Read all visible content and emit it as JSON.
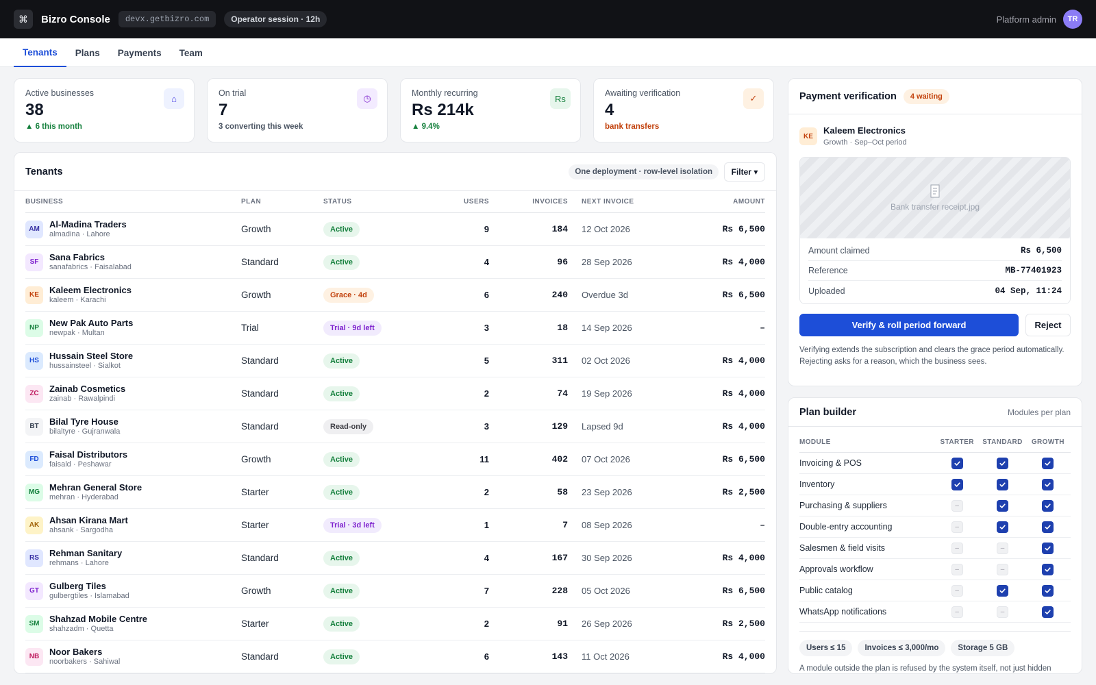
{
  "header": {
    "app_name": "Bizro Console",
    "domain": "devx.getbizro.com",
    "session": "Operator session · 12h",
    "role": "Platform admin",
    "avatar_initials": "TR",
    "logo_glyph": "⌘"
  },
  "tabs": [
    {
      "label": "Tenants",
      "active": true
    },
    {
      "label": "Plans",
      "active": false
    },
    {
      "label": "Payments",
      "active": false
    },
    {
      "label": "Team",
      "active": false
    }
  ],
  "kpis": [
    {
      "label": "Active businesses",
      "value": "38",
      "sub": "▲ 6 this month",
      "icon": "home-icon",
      "glyph": "⌂",
      "sub_color": "#15803d",
      "icon_bg": "#eef2ff",
      "icon_color": "#4f46e5"
    },
    {
      "label": "On trial",
      "value": "7",
      "sub": "3 converting this week",
      "icon": "clock-icon",
      "glyph": "◷",
      "sub_color": "#4b5563",
      "icon_bg": "#f3ebff",
      "icon_color": "#7e22ce"
    },
    {
      "label": "Monthly recurring",
      "value": "Rs 214k",
      "sub": "▲ 9.4%",
      "icon": "rupee-icon",
      "glyph": "Rs",
      "sub_color": "#15803d",
      "icon_bg": "#e7f6ec",
      "icon_color": "#15803d"
    },
    {
      "label": "Awaiting verification",
      "value": "4",
      "sub": "bank transfers",
      "icon": "check-icon",
      "glyph": "✓",
      "sub_color": "#c2410c",
      "icon_bg": "#fef1e2",
      "icon_color": "#c2410c"
    }
  ],
  "tenants": {
    "title": "Tenants",
    "isolation_chip": "One deployment · row-level isolation",
    "filter_label": "Filter ▾",
    "columns": {
      "business": "BUSINESS",
      "plan": "PLAN",
      "status": "STATUS",
      "users": "USERS",
      "invoices": "INVOICES",
      "next_invoice": "NEXT INVOICE",
      "amount": "AMOUNT"
    },
    "rows": [
      {
        "initials": "AM",
        "name": "Al-Madina Traders",
        "sub": "almadina · Lahore",
        "plan": "Growth",
        "status": "Active",
        "kind": "active",
        "users": "9",
        "invoices": "184",
        "next": "12 Oct 2026",
        "amount": "Rs 6,500",
        "ini_bg": "#e0e7ff",
        "ini_fg": "#3730a3"
      },
      {
        "initials": "SF",
        "name": "Sana Fabrics",
        "sub": "sanafabrics · Faisalabad",
        "plan": "Standard",
        "status": "Active",
        "kind": "active",
        "users": "4",
        "invoices": "96",
        "next": "28 Sep 2026",
        "amount": "Rs 4,000",
        "ini_bg": "#f3e8ff",
        "ini_fg": "#7e22ce"
      },
      {
        "initials": "KE",
        "name": "Kaleem Electronics",
        "sub": "kaleem · Karachi",
        "plan": "Growth",
        "status": "Grace · 4d",
        "kind": "grace",
        "users": "6",
        "invoices": "240",
        "next": "Overdue 3d",
        "amount": "Rs 6,500",
        "ini_bg": "#ffedd5",
        "ini_fg": "#c2410c"
      },
      {
        "initials": "NP",
        "name": "New Pak Auto Parts",
        "sub": "newpak · Multan",
        "plan": "Trial",
        "status": "Trial · 9d left",
        "kind": "trial",
        "users": "3",
        "invoices": "18",
        "next": "14 Sep 2026",
        "amount": "–",
        "ini_bg": "#dcfce7",
        "ini_fg": "#15803d"
      },
      {
        "initials": "HS",
        "name": "Hussain Steel Store",
        "sub": "hussainsteel · Sialkot",
        "plan": "Standard",
        "status": "Active",
        "kind": "active",
        "users": "5",
        "invoices": "311",
        "next": "02 Oct 2026",
        "amount": "Rs 4,000",
        "ini_bg": "#dbeafe",
        "ini_fg": "#1d4ed8"
      },
      {
        "initials": "ZC",
        "name": "Zainab Cosmetics",
        "sub": "zainab · Rawalpindi",
        "plan": "Standard",
        "status": "Active",
        "kind": "active",
        "users": "2",
        "invoices": "74",
        "next": "19 Sep 2026",
        "amount": "Rs 4,000",
        "ini_bg": "#fce7f3",
        "ini_fg": "#be185d"
      },
      {
        "initials": "BT",
        "name": "Bilal Tyre House",
        "sub": "bilaltyre · Gujranwala",
        "plan": "Standard",
        "status": "Read-only",
        "kind": "ro",
        "users": "3",
        "invoices": "129",
        "next": "Lapsed 9d",
        "amount": "Rs 4,000",
        "ini_bg": "#f3f4f6",
        "ini_fg": "#374151"
      },
      {
        "initials": "FD",
        "name": "Faisal Distributors",
        "sub": "faisald · Peshawar",
        "plan": "Growth",
        "status": "Active",
        "kind": "active",
        "users": "11",
        "invoices": "402",
        "next": "07 Oct 2026",
        "amount": "Rs 6,500",
        "ini_bg": "#dbeafe",
        "ini_fg": "#1d4ed8"
      },
      {
        "initials": "MG",
        "name": "Mehran General Store",
        "sub": "mehran · Hyderabad",
        "plan": "Starter",
        "status": "Active",
        "kind": "active",
        "users": "2",
        "invoices": "58",
        "next": "23 Sep 2026",
        "amount": "Rs 2,500",
        "ini_bg": "#dcfce7",
        "ini_fg": "#15803d"
      },
      {
        "initials": "AK",
        "name": "Ahsan Kirana Mart",
        "sub": "ahsank · Sargodha",
        "plan": "Starter",
        "status": "Trial · 3d left",
        "kind": "trial",
        "users": "1",
        "invoices": "7",
        "next": "08 Sep 2026",
        "amount": "–",
        "ini_bg": "#fef3c7",
        "ini_fg": "#a16207"
      },
      {
        "initials": "RS",
        "name": "Rehman Sanitary",
        "sub": "rehmans · Lahore",
        "plan": "Standard",
        "status": "Active",
        "kind": "active",
        "users": "4",
        "invoices": "167",
        "next": "30 Sep 2026",
        "amount": "Rs 4,000",
        "ini_bg": "#e0e7ff",
        "ini_fg": "#3730a3"
      },
      {
        "initials": "GT",
        "name": "Gulberg Tiles",
        "sub": "gulbergtiles · Islamabad",
        "plan": "Growth",
        "status": "Active",
        "kind": "active",
        "users": "7",
        "invoices": "228",
        "next": "05 Oct 2026",
        "amount": "Rs 6,500",
        "ini_bg": "#f3e8ff",
        "ini_fg": "#7e22ce"
      },
      {
        "initials": "SM",
        "name": "Shahzad Mobile Centre",
        "sub": "shahzadm · Quetta",
        "plan": "Starter",
        "status": "Active",
        "kind": "active",
        "users": "2",
        "invoices": "91",
        "next": "26 Sep 2026",
        "amount": "Rs 2,500",
        "ini_bg": "#dcfce7",
        "ini_fg": "#15803d"
      },
      {
        "initials": "NB",
        "name": "Noor Bakers",
        "sub": "noorbakers · Sahiwal",
        "plan": "Standard",
        "status": "Active",
        "kind": "active",
        "users": "6",
        "invoices": "143",
        "next": "11 Oct 2026",
        "amount": "Rs 4,000",
        "ini_bg": "#fce7f3",
        "ini_fg": "#be185d"
      }
    ]
  },
  "verification": {
    "title": "Payment verification",
    "waiting": "4 waiting",
    "business_initials": "KE",
    "business_name": "Kaleem Electronics",
    "business_sub": "Growth · Sep–Oct period",
    "receipt_name": "Bank transfer receipt.jpg",
    "receipt_icon": "receipt-icon",
    "fields": [
      {
        "label": "Amount claimed",
        "value": "Rs 6,500"
      },
      {
        "label": "Reference",
        "value": "MB-77401923"
      },
      {
        "label": "Uploaded",
        "value": "04 Sep, 11:24"
      }
    ],
    "verify_label": "Verify & roll period forward",
    "reject_label": "Reject",
    "note": "Verifying extends the subscription and clears the grace period automatically. Rejecting asks for a reason, which the business sees."
  },
  "plan_builder": {
    "title": "Plan builder",
    "subtitle": "Modules per plan",
    "columns": {
      "module": "MODULE",
      "starter": "STARTER",
      "standard": "STANDARD",
      "growth": "GROWTH"
    },
    "modules": [
      {
        "name": "Invoicing & POS",
        "starter": true,
        "standard": true,
        "growth": true
      },
      {
        "name": "Inventory",
        "starter": true,
        "standard": true,
        "growth": true
      },
      {
        "name": "Purchasing & suppliers",
        "starter": false,
        "standard": true,
        "growth": true
      },
      {
        "name": "Double-entry accounting",
        "starter": false,
        "standard": true,
        "growth": true
      },
      {
        "name": "Salesmen & field visits",
        "starter": false,
        "standard": false,
        "growth": true
      },
      {
        "name": "Approvals workflow",
        "starter": false,
        "standard": false,
        "growth": true
      },
      {
        "name": "Public catalog",
        "starter": false,
        "standard": true,
        "growth": true
      },
      {
        "name": "WhatsApp notifications",
        "starter": false,
        "standard": false,
        "growth": true
      }
    ],
    "limits": [
      "Users ≤ 15",
      "Invoices ≤ 3,000/mo",
      "Storage 5 GB"
    ],
    "note": "A module outside the plan is refused by the system itself, not just hidden"
  }
}
